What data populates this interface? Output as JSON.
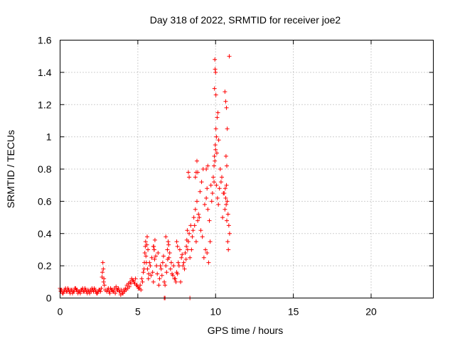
{
  "chart_data": {
    "type": "scatter",
    "title": "Day 318 of 2022, SRMTID for receiver joe2",
    "xlabel": "GPS time / hours",
    "ylabel": "SRMTID / TECUs",
    "xlim": [
      0,
      24
    ],
    "ylim": [
      0,
      1.6
    ],
    "xticks": [
      "0",
      "5",
      "10",
      "15",
      "20"
    ],
    "yticks": [
      "0",
      "0.2",
      "0.4",
      "0.6",
      "0.8",
      "1",
      "1.2",
      "1.4",
      "1.6"
    ],
    "marker": "+",
    "color": "#ff0000",
    "grid": true,
    "series": [
      {
        "name": "SRMTID",
        "x": [
          0.0,
          0.05,
          0.1,
          0.2,
          0.3,
          0.4,
          0.5,
          0.6,
          0.7,
          0.8,
          0.9,
          1.0,
          1.1,
          1.2,
          1.3,
          1.4,
          1.5,
          1.6,
          1.7,
          1.8,
          1.9,
          2.0,
          2.1,
          2.2,
          2.3,
          2.4,
          2.5,
          2.6,
          2.7,
          2.75,
          2.8,
          2.85,
          2.9,
          3.0,
          3.1,
          3.2,
          3.3,
          3.4,
          3.5,
          3.6,
          3.7,
          3.8,
          3.9,
          4.0,
          4.1,
          4.2,
          4.3,
          4.4,
          4.5,
          4.6,
          4.7,
          4.8,
          4.9,
          5.0,
          5.1,
          5.2,
          5.3,
          5.4,
          5.45,
          5.5,
          5.55,
          5.6,
          5.65,
          5.7,
          5.8,
          5.9,
          6.0,
          6.05,
          6.1,
          6.2,
          6.3,
          6.4,
          6.5,
          6.6,
          6.7,
          6.8,
          6.9,
          6.95,
          7.0,
          7.1,
          7.2,
          7.3,
          7.4,
          7.5,
          7.6,
          7.7,
          7.8,
          7.9,
          8.0,
          8.1,
          8.15,
          8.2,
          8.3,
          8.4,
          8.5,
          8.6,
          8.7,
          8.8,
          8.9,
          9.0,
          9.1,
          9.2,
          9.3,
          9.4,
          9.5,
          9.6,
          9.7,
          9.8,
          9.9,
          9.95,
          10.0,
          10.05,
          10.1,
          10.15,
          10.2,
          10.3,
          10.4,
          10.5,
          10.6,
          10.65,
          10.7,
          10.75,
          10.8,
          10.85,
          10.9,
          0.05,
          0.15,
          0.25,
          0.35,
          0.45,
          0.55,
          0.65,
          0.75,
          0.85,
          0.95,
          1.05,
          1.15,
          1.25,
          1.35,
          1.45,
          1.55,
          1.65,
          1.75,
          1.85,
          1.95,
          2.05,
          2.15,
          2.25,
          2.35,
          2.45,
          2.55,
          2.65,
          2.72,
          2.78,
          2.82,
          3.05,
          3.15,
          3.25,
          3.35,
          3.45,
          3.55,
          3.65,
          3.75,
          3.85,
          3.95,
          4.05,
          4.15,
          4.25,
          4.35,
          4.45,
          4.55,
          4.65,
          4.75,
          4.85,
          4.95,
          5.05,
          5.15,
          5.25,
          5.35,
          5.42,
          5.48,
          5.52,
          5.58,
          5.62,
          5.68,
          5.75,
          5.85,
          5.95,
          6.02,
          6.08,
          6.15,
          6.25,
          6.35,
          6.45,
          6.55,
          6.65,
          6.75,
          6.85,
          6.92,
          6.98,
          7.05,
          7.15,
          7.25,
          7.35,
          7.45,
          7.55,
          7.65,
          7.75,
          7.85,
          7.95,
          8.05,
          8.12,
          8.18,
          8.25,
          8.35,
          8.45,
          8.55,
          8.65,
          8.75,
          8.85,
          8.95,
          9.05,
          9.15,
          9.25,
          9.35,
          9.45,
          9.55,
          9.65,
          9.75,
          9.85,
          9.92,
          9.98,
          10.02,
          10.08,
          10.12,
          10.18,
          10.25,
          10.35,
          10.45,
          10.55,
          10.62,
          10.68,
          10.72,
          10.78,
          10.82,
          10.88,
          9.95,
          9.97,
          10.0,
          10.02,
          10.05,
          9.9,
          9.93,
          10.6,
          10.65,
          10.7,
          10.75,
          10.67,
          10.72,
          8.7,
          8.75,
          8.8,
          8.85,
          9.4,
          9.45,
          9.5,
          8.25,
          8.3,
          8.35,
          6.7,
          6.75,
          6.8,
          7.5,
          7.55,
          6.0,
          6.05
        ],
        "y": [
          0.06,
          0.04,
          0.05,
          0.03,
          0.05,
          0.04,
          0.06,
          0.04,
          0.05,
          0.03,
          0.04,
          0.06,
          0.05,
          0.04,
          0.03,
          0.05,
          0.04,
          0.06,
          0.04,
          0.05,
          0.03,
          0.04,
          0.05,
          0.06,
          0.04,
          0.03,
          0.05,
          0.04,
          0.13,
          0.22,
          0.1,
          0.08,
          0.05,
          0.04,
          0.06,
          0.03,
          0.05,
          0.04,
          0.06,
          0.07,
          0.05,
          0.04,
          0.02,
          0.03,
          0.05,
          0.06,
          0.08,
          0.09,
          0.1,
          0.12,
          0.11,
          0.09,
          0.08,
          0.07,
          0.06,
          0.05,
          0.1,
          0.18,
          0.28,
          0.35,
          0.22,
          0.38,
          0.3,
          0.15,
          0.2,
          0.25,
          0.1,
          0.3,
          0.36,
          0.2,
          0.28,
          0.12,
          0.18,
          0.22,
          0.1,
          0.2,
          0.3,
          0.35,
          0.25,
          0.18,
          0.15,
          0.2,
          0.12,
          0.16,
          0.22,
          0.3,
          0.25,
          0.2,
          0.18,
          0.24,
          0.36,
          0.3,
          0.4,
          0.45,
          0.38,
          0.5,
          0.55,
          0.6,
          0.52,
          0.66,
          0.72,
          0.8,
          0.58,
          0.62,
          0.55,
          0.48,
          0.7,
          0.65,
          0.72,
          0.85,
          0.92,
          1.0,
          1.12,
          1.15,
          0.98,
          0.8,
          0.75,
          0.65,
          0.55,
          0.62,
          0.7,
          0.6,
          0.52,
          0.45,
          0.4,
          0.05,
          0.03,
          0.04,
          0.06,
          0.04,
          0.05,
          0.03,
          0.05,
          0.04,
          0.06,
          0.05,
          0.03,
          0.04,
          0.05,
          0.06,
          0.04,
          0.05,
          0.03,
          0.04,
          0.05,
          0.06,
          0.04,
          0.05,
          0.03,
          0.04,
          0.05,
          0.06,
          0.16,
          0.18,
          0.12,
          0.05,
          0.04,
          0.06,
          0.05,
          0.04,
          0.03,
          0.05,
          0.06,
          0.04,
          0.05,
          0.03,
          0.04,
          0.05,
          0.06,
          0.07,
          0.09,
          0.11,
          0.1,
          0.12,
          0.08,
          0.06,
          0.08,
          0.12,
          0.16,
          0.22,
          0.32,
          0.26,
          0.33,
          0.18,
          0.12,
          0.22,
          0.14,
          0.16,
          0.32,
          0.24,
          0.26,
          0.15,
          0.08,
          0.2,
          0.14,
          0.26,
          0.08,
          0.16,
          0.24,
          0.33,
          0.28,
          0.22,
          0.14,
          0.12,
          0.1,
          0.15,
          0.2,
          0.1,
          0.27,
          0.22,
          0.28,
          0.32,
          0.42,
          0.35,
          0.25,
          0.3,
          0.42,
          0.45,
          0.35,
          0.48,
          0.5,
          0.42,
          0.38,
          0.25,
          0.3,
          0.28,
          0.22,
          0.35,
          0.6,
          0.75,
          0.88,
          0.95,
          1.05,
          0.9,
          0.62,
          0.58,
          0.68,
          0.72,
          0.5,
          0.65,
          0.68,
          0.58,
          0.48,
          0.35,
          0.3,
          1.5,
          1.48,
          1.42,
          1.4,
          1.26,
          0.7,
          0.82,
          1.3,
          1.28,
          1.22,
          1.18,
          1.05,
          0.88,
          0.82,
          0.75,
          0.78,
          0.85,
          0.78,
          0.8,
          0.68,
          0.82,
          0.78,
          0.75,
          0.0,
          0.0,
          0.0,
          0.38,
          0.35,
          0.32,
          0.32,
          0.3
        ]
      }
    ]
  }
}
